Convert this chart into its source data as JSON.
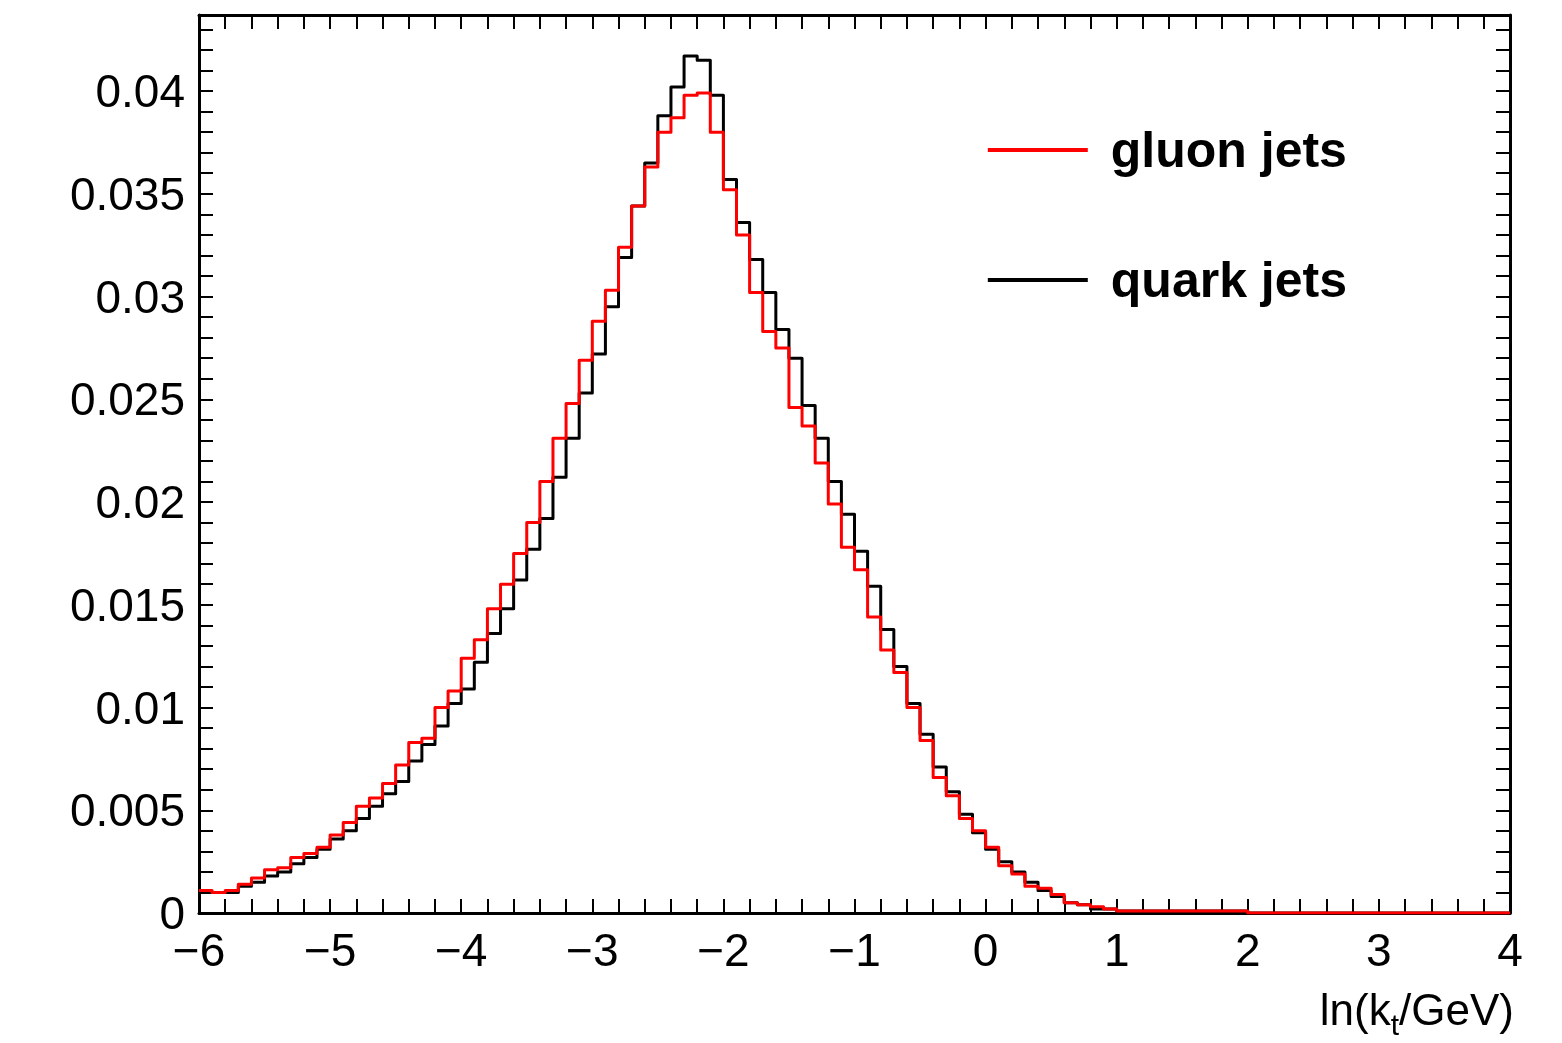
{
  "chart_data": {
    "type": "histogram",
    "xlabel": "ln(k$_{t}$/GeV)",
    "bins": [
      -6,
      -5.9,
      -5.8,
      -5.7,
      -5.6,
      -5.5,
      -5.4,
      -5.3,
      -5.2,
      -5.1,
      -5,
      -4.9,
      -4.8,
      -4.7,
      -4.6,
      -4.5,
      -4.4,
      -4.3,
      -4.2,
      -4.1,
      -4,
      -3.9,
      -3.8,
      -3.7,
      -3.6,
      -3.5,
      -3.4,
      -3.3,
      -3.2,
      -3.1,
      -3,
      -2.9,
      -2.8,
      -2.7,
      -2.6,
      -2.5,
      -2.4,
      -2.3,
      -2.2,
      -2.1,
      -2,
      -1.9,
      -1.8,
      -1.7,
      -1.6,
      -1.5,
      -1.4,
      -1.3,
      -1.2,
      -1.1,
      -1,
      -0.9,
      -0.8,
      -0.7,
      -0.6,
      -0.5,
      -0.4,
      -0.3,
      -0.2,
      -0.1,
      0,
      0.1,
      0.2,
      0.3,
      0.4,
      0.5,
      0.6,
      0.7,
      0.8,
      0.9,
      1,
      1.1,
      1.2,
      1.3,
      1.4,
      1.5,
      1.6,
      1.7,
      1.8,
      1.9,
      2,
      2.1,
      2.2,
      2.3,
      2.4,
      2.5,
      2.6,
      2.7,
      2.8,
      2.9,
      3,
      3.1,
      3.2,
      3.3,
      3.4,
      3.5,
      3.6,
      3.7,
      3.8,
      3.9,
      4
    ],
    "series": [
      {
        "name": "gluon jets",
        "color": "#ff0000",
        "values": [
          0.0011,
          0.001,
          0.0011,
          0.0014,
          0.0017,
          0.0021,
          0.0022,
          0.0027,
          0.0029,
          0.0032,
          0.0038,
          0.0044,
          0.0052,
          0.0056,
          0.0063,
          0.0072,
          0.0083,
          0.0085,
          0.01,
          0.0108,
          0.0124,
          0.0133,
          0.0148,
          0.016,
          0.0175,
          0.019,
          0.021,
          0.0231,
          0.0248,
          0.0269,
          0.0288,
          0.0303,
          0.0324,
          0.0344,
          0.0363,
          0.038,
          0.0387,
          0.0398,
          0.0399,
          0.038,
          0.0352,
          0.033,
          0.0302,
          0.0283,
          0.0275,
          0.0246,
          0.0237,
          0.0219,
          0.0199,
          0.0178,
          0.0167,
          0.0144,
          0.0128,
          0.0117,
          0.01,
          0.0084,
          0.0066,
          0.0057,
          0.0046,
          0.004,
          0.0032,
          0.0023,
          0.0019,
          0.0013,
          0.0012,
          0.0009,
          0.0005,
          0.0004,
          0.0003,
          0.0002,
          0.0001,
          0.0001,
          0.0001,
          0.0001,
          0.0001,
          0.0001,
          0.0001,
          0.0001,
          0.0001,
          0.0001,
          0,
          0,
          0,
          0,
          0,
          0,
          0,
          0,
          0,
          0,
          0,
          0,
          0,
          0,
          0,
          0,
          0,
          0,
          0,
          0
        ]
      },
      {
        "name": "quark jets",
        "color": "#000000",
        "values": [
          0.001,
          0.001,
          0.001,
          0.0013,
          0.0015,
          0.0018,
          0.002,
          0.0024,
          0.0027,
          0.0031,
          0.0036,
          0.004,
          0.0046,
          0.0052,
          0.0058,
          0.0064,
          0.0074,
          0.0082,
          0.0091,
          0.0102,
          0.0109,
          0.0122,
          0.0136,
          0.0148,
          0.0162,
          0.0177,
          0.0192,
          0.0212,
          0.0231,
          0.0253,
          0.0272,
          0.0295,
          0.0319,
          0.0344,
          0.0365,
          0.0388,
          0.0402,
          0.0417,
          0.0415,
          0.0398,
          0.0357,
          0.0336,
          0.0318,
          0.0302,
          0.0284,
          0.027,
          0.0247,
          0.0231,
          0.021,
          0.0194,
          0.0176,
          0.0159,
          0.0138,
          0.012,
          0.0102,
          0.0087,
          0.0071,
          0.0059,
          0.0048,
          0.0039,
          0.0031,
          0.0025,
          0.002,
          0.0015,
          0.0011,
          0.0008,
          0.0005,
          0.0004,
          0.0002,
          0.0002,
          0.0001,
          0.0001,
          0.0001,
          0.0001,
          0.0001,
          0.0001,
          0.0001,
          0.0001,
          0.0001,
          0.0001,
          0,
          0,
          0,
          0,
          0,
          0,
          0,
          0,
          0,
          0,
          0,
          0,
          0,
          0,
          0,
          0,
          0,
          0,
          0,
          0
        ]
      }
    ],
    "xlim": [
      -6,
      4
    ],
    "xticks": [
      {
        "value": -6,
        "label": "−6"
      },
      {
        "value": -5.8,
        "label": null
      },
      {
        "value": -5.6,
        "label": null
      },
      {
        "value": -5.4,
        "label": null
      },
      {
        "value": -5.2,
        "label": null
      },
      {
        "value": -5,
        "label": "−5"
      },
      {
        "value": -4.8,
        "label": null
      },
      {
        "value": -4.6,
        "label": null
      },
      {
        "value": -4.4,
        "label": null
      },
      {
        "value": -4.2,
        "label": null
      },
      {
        "value": -4,
        "label": "−4"
      },
      {
        "value": -3.8,
        "label": null
      },
      {
        "value": -3.6,
        "label": null
      },
      {
        "value": -3.4,
        "label": null
      },
      {
        "value": -3.2,
        "label": null
      },
      {
        "value": -3,
        "label": "−3"
      },
      {
        "value": -2.8,
        "label": null
      },
      {
        "value": -2.6,
        "label": null
      },
      {
        "value": -2.4,
        "label": null
      },
      {
        "value": -2.2,
        "label": null
      },
      {
        "value": -2,
        "label": "−2"
      },
      {
        "value": -1.8,
        "label": null
      },
      {
        "value": -1.6,
        "label": null
      },
      {
        "value": -1.4,
        "label": null
      },
      {
        "value": -1.2,
        "label": null
      },
      {
        "value": -1,
        "label": "−1"
      },
      {
        "value": -0.8,
        "label": null
      },
      {
        "value": -0.6,
        "label": null
      },
      {
        "value": -0.4,
        "label": null
      },
      {
        "value": -0.2,
        "label": null
      },
      0,
      {
        "value": 0.2,
        "label": null
      },
      {
        "value": 0.4,
        "label": null
      },
      {
        "value": 0.6,
        "label": null
      },
      {
        "value": 0.8,
        "label": null
      },
      1,
      {
        "value": 1.2,
        "label": null
      },
      {
        "value": 1.4,
        "label": null
      },
      {
        "value": 1.6,
        "label": null
      },
      {
        "value": 1.8,
        "label": null
      },
      2,
      {
        "value": 2.2,
        "label": null
      },
      {
        "value": 2.4,
        "label": null
      },
      {
        "value": 2.6,
        "label": null
      },
      {
        "value": 2.8,
        "label": null
      },
      3,
      {
        "value": 3.2,
        "label": null
      },
      {
        "value": 3.4,
        "label": null
      },
      {
        "value": 3.6,
        "label": null
      },
      {
        "value": 3.8,
        "label": null
      },
      4
    ],
    "ylim": [
      0,
      0.0437
    ],
    "yticks": [
      0,
      {
        "value": 0.001,
        "label": null
      },
      {
        "value": 0.002,
        "label": null
      },
      {
        "value": 0.003,
        "label": null
      },
      {
        "value": 0.004,
        "label": null
      },
      0.005,
      {
        "value": 0.006,
        "label": null
      },
      {
        "value": 0.007,
        "label": null
      },
      {
        "value": 0.008,
        "label": null
      },
      {
        "value": 0.009,
        "label": null
      },
      0.01,
      {
        "value": 0.011,
        "label": null
      },
      {
        "value": 0.012,
        "label": null
      },
      {
        "value": 0.013,
        "label": null
      },
      {
        "value": 0.014,
        "label": null
      },
      0.015,
      {
        "value": 0.016,
        "label": null
      },
      {
        "value": 0.017,
        "label": null
      },
      {
        "value": 0.018,
        "label": null
      },
      {
        "value": 0.019,
        "label": null
      },
      0.02,
      {
        "value": 0.021,
        "label": null
      },
      {
        "value": 0.022,
        "label": null
      },
      {
        "value": 0.023,
        "label": null
      },
      {
        "value": 0.024,
        "label": null
      },
      0.025,
      {
        "value": 0.026,
        "label": null
      },
      {
        "value": 0.027,
        "label": null
      },
      {
        "value": 0.028,
        "label": null
      },
      {
        "value": 0.029,
        "label": null
      },
      0.03,
      {
        "value": 0.031,
        "label": null
      },
      {
        "value": 0.032,
        "label": null
      },
      {
        "value": 0.033,
        "label": null
      },
      {
        "value": 0.034,
        "label": null
      },
      0.035,
      {
        "value": 0.036,
        "label": null
      },
      {
        "value": 0.037,
        "label": null
      },
      {
        "value": 0.038,
        "label": null
      },
      {
        "value": 0.039,
        "label": null
      },
      0.04,
      {
        "value": 0.041,
        "label": null
      },
      {
        "value": 0.042,
        "label": null
      },
      {
        "value": 0.043,
        "label": null
      }
    ],
    "legend": "top right",
    "grid": false
  }
}
